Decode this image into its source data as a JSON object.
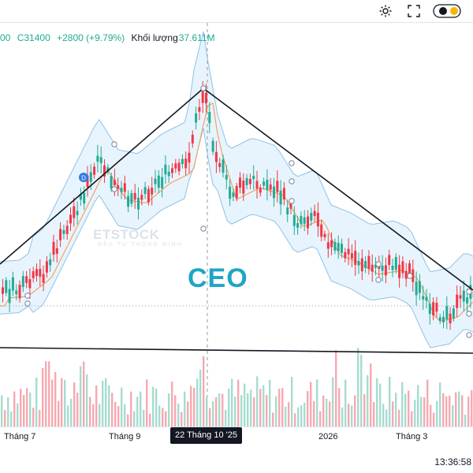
{
  "toolbar": {
    "icons": [
      "settings-icon",
      "fullscreen-icon",
      "theme-toggle-icon"
    ]
  },
  "legend": {
    "open_fragment": "00",
    "close_text": "C31400",
    "change_text": "+2800 (+9.79%)",
    "volume_label": "Khối lượng",
    "volume_value": "37.611M"
  },
  "watermark": {
    "text": "ETSTOCK",
    "sub": "ĐẦU TƯ THÔNG MINH"
  },
  "symbol_label": "CEO",
  "time_axis": {
    "ticks": [
      "Tháng 7",
      "Tháng 9",
      "2026",
      "Tháng 3"
    ],
    "crosshair_label": "22 Tháng 10 '25"
  },
  "clock": "13:36:58",
  "colors": {
    "up": "#22ab94",
    "down": "#f23645",
    "band_fill": "#e3f2fd",
    "band_line": "#8fc3e6",
    "ma_line": "#f7a35c",
    "trendline": "#131722",
    "vol_up": "#a6dccf",
    "vol_down": "#f7a9b0"
  },
  "chart_data": {
    "type": "candlestick",
    "symbol": "CEO",
    "last_close": 31400,
    "change": 2800,
    "change_pct": 9.79,
    "volume_millions": 37.611,
    "time_range": [
      "2025-06",
      "2026-04"
    ],
    "peak": {
      "date": "2025-10-22"
    },
    "overlays": [
      "bollinger-bands",
      "moving-average",
      "trendlines",
      "volume"
    ],
    "pattern": "triangle-top"
  }
}
